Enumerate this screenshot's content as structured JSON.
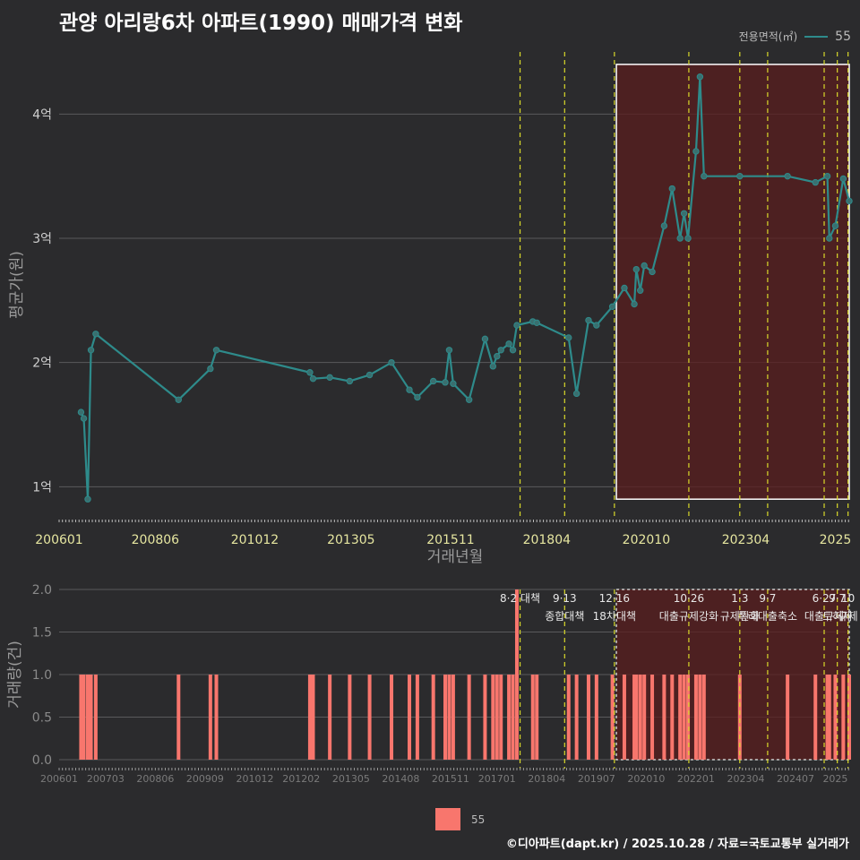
{
  "title": "관양 아리랑6차 아파트(1990) 매매가격 변화",
  "footer": "©디아파트(dapt.kr) / 2025.10.28 / 자료=국토교통부 실거래가",
  "legend": {
    "title": "전용면적(㎡)",
    "series_name": "55"
  },
  "colors": {
    "line": "#2e8b8b",
    "bar": "#f8766d",
    "policy": "#d9d92a",
    "highlight_fill": "#5a1e1e"
  },
  "chart_data": [
    {
      "type": "line",
      "title": "관양 아리랑6차 아파트(1990) 매매가격 변화",
      "xlabel": "거래년월",
      "ylabel": "평균가(원)",
      "x_ticks": [
        "200601",
        "200806",
        "201012",
        "201305",
        "201511",
        "201804",
        "202010",
        "202304",
        "2025"
      ],
      "y_ticks": [
        "1억",
        "2억",
        "3억",
        "4억"
      ],
      "ylim": [
        0.75,
        4.5
      ],
      "xlim": [
        2006.0,
        2025.85
      ],
      "series": [
        {
          "name": "55",
          "x": [
            2006.55,
            2006.62,
            2006.72,
            2006.8,
            2006.92,
            2009.0,
            2009.8,
            2009.95,
            2012.3,
            2012.38,
            2012.8,
            2013.3,
            2013.8,
            2014.35,
            2014.8,
            2015.0,
            2015.4,
            2015.7,
            2015.8,
            2015.9,
            2016.3,
            2016.7,
            2016.9,
            2017.0,
            2017.1,
            2017.3,
            2017.4,
            2017.5,
            2017.9,
            2018.0,
            2018.8,
            2019.0,
            2019.3,
            2019.5,
            2019.9,
            2020.2,
            2020.45,
            2020.5,
            2020.6,
            2020.7,
            2020.9,
            2021.2,
            2021.4,
            2021.6,
            2021.7,
            2021.8,
            2022.0,
            2022.1,
            2022.2,
            2023.1,
            2024.3,
            2025.0,
            2025.3,
            2025.35,
            2025.5,
            2025.7,
            2025.85
          ],
          "y": [
            1.6,
            1.55,
            0.9,
            2.1,
            2.23,
            1.7,
            1.95,
            2.1,
            1.92,
            1.87,
            1.88,
            1.85,
            1.9,
            2.0,
            1.78,
            1.72,
            1.85,
            1.84,
            2.1,
            1.83,
            1.7,
            2.19,
            1.97,
            2.05,
            2.1,
            2.15,
            2.1,
            2.3,
            2.33,
            2.32,
            2.2,
            1.75,
            2.34,
            2.3,
            2.45,
            2.6,
            2.47,
            2.75,
            2.58,
            2.78,
            2.73,
            3.1,
            3.4,
            3.0,
            3.2,
            3.0,
            3.7,
            4.3,
            3.5,
            3.5,
            3.5,
            3.45,
            3.5,
            3.0,
            3.1,
            3.48,
            3.3
          ]
        }
      ],
      "policy_lines_x": [
        2017.58,
        2018.7,
        2019.95,
        2021.82,
        2023.1,
        2023.8,
        2025.22,
        2025.55,
        2025.82
      ],
      "highlight_x": [
        2020.0,
        2025.85
      ]
    },
    {
      "type": "bar",
      "xlabel": "",
      "ylabel": "거래량(건)",
      "x_ticks": [
        "200601",
        "200703",
        "200806",
        "200909",
        "201012",
        "201202",
        "201305",
        "201408",
        "201511",
        "201701",
        "201804",
        "201907",
        "202010",
        "202201",
        "202304",
        "202407",
        "2025"
      ],
      "y_ticks": [
        "0.0",
        "0.5",
        "1.0",
        "1.5",
        "2.0"
      ],
      "ylim": [
        0,
        2
      ],
      "xlim": [
        2006.0,
        2025.85
      ],
      "series": [
        {
          "name": "55",
          "x": [
            2006.55,
            2006.62,
            2006.72,
            2006.8,
            2006.92,
            2009.0,
            2009.8,
            2009.95,
            2012.3,
            2012.38,
            2012.8,
            2013.3,
            2013.8,
            2014.35,
            2014.8,
            2015.0,
            2015.4,
            2015.7,
            2015.8,
            2015.9,
            2016.3,
            2016.7,
            2016.9,
            2017.0,
            2017.1,
            2017.3,
            2017.4,
            2017.5,
            2017.9,
            2018.0,
            2018.8,
            2019.0,
            2019.3,
            2019.5,
            2019.9,
            2020.2,
            2020.45,
            2020.5,
            2020.6,
            2020.7,
            2020.9,
            2021.2,
            2021.4,
            2021.6,
            2021.7,
            2021.8,
            2022.0,
            2022.1,
            2022.2,
            2023.1,
            2024.3,
            2025.0,
            2025.3,
            2025.35,
            2025.5,
            2025.7,
            2025.85
          ],
          "values": [
            1,
            1,
            1,
            1,
            1,
            1,
            1,
            1,
            1,
            1,
            1,
            1,
            1,
            1,
            1,
            1,
            1,
            1,
            1,
            1,
            1,
            1,
            1,
            1,
            1,
            1,
            1,
            2,
            1,
            1,
            1,
            1,
            1,
            1,
            1,
            1,
            1,
            1,
            1,
            1,
            1,
            1,
            1,
            1,
            1,
            1,
            1,
            1,
            1,
            1,
            1,
            1,
            1,
            1,
            1,
            1,
            1
          ]
        }
      ],
      "policy_labels": [
        {
          "x": 2017.58,
          "date": "8·2 대책",
          "name": ""
        },
        {
          "x": 2018.7,
          "date": "9·13",
          "name": "종합대책"
        },
        {
          "x": 2019.95,
          "date": "12·16",
          "name": "18차대책"
        },
        {
          "x": 2021.82,
          "date": "10·26",
          "name": "대출규제강화"
        },
        {
          "x": 2023.1,
          "date": "1·3",
          "name": "규제완화"
        },
        {
          "x": 2023.8,
          "date": "9·7",
          "name": "특례대출축소"
        },
        {
          "x": 2025.22,
          "date": "6·27",
          "name": "대출규제"
        },
        {
          "x": 2025.55,
          "date": "9·7",
          "name": "토허제"
        },
        {
          "x": 2025.82,
          "date": "10",
          "name": "규제"
        }
      ]
    }
  ]
}
